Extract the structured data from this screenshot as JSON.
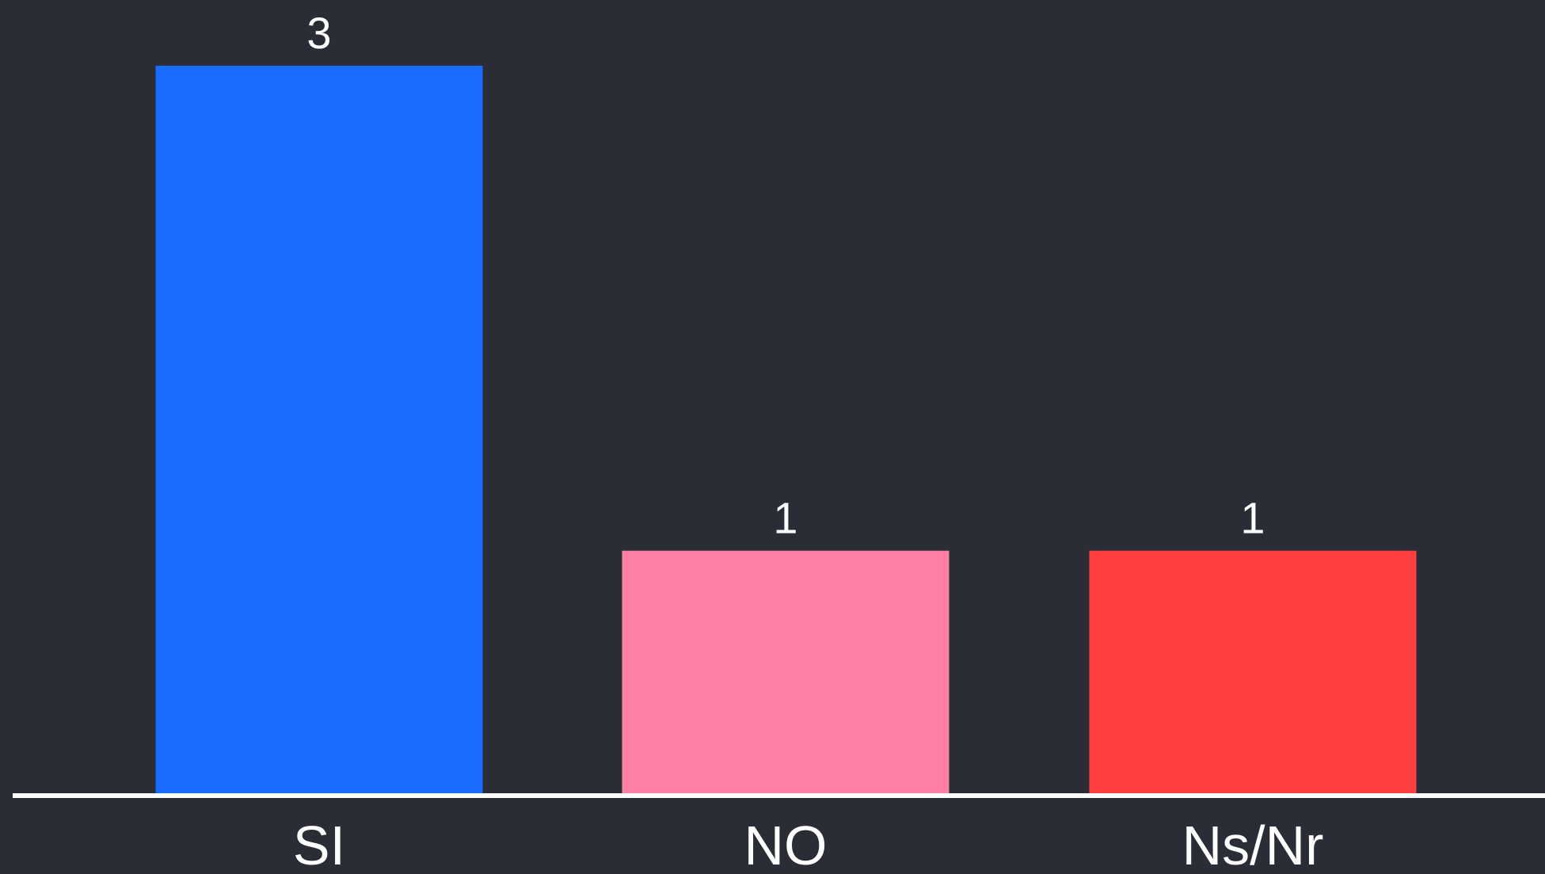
{
  "background_color": "#2a2d35",
  "axis_color": "#ffffff",
  "label_color": "#ffffff",
  "chart_data": {
    "type": "bar",
    "title": "",
    "xlabel": "",
    "ylabel": "",
    "categories": [
      "SI",
      "NO",
      "Ns/Nr"
    ],
    "values": [
      3,
      1,
      1
    ],
    "data_labels": [
      "3",
      "1",
      "1"
    ],
    "colors": [
      "#1a6cff",
      "#ff80a6",
      "#ff4040"
    ],
    "ylim": [
      0,
      3
    ],
    "grid": false,
    "legend": "none",
    "y_axis_visible": false
  }
}
